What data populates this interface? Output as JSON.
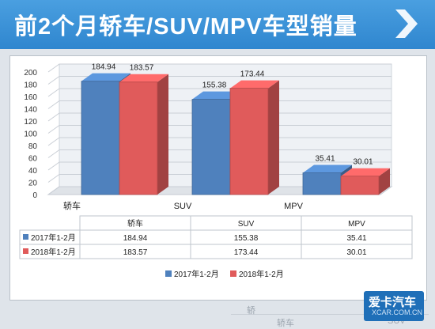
{
  "header": {
    "title": "前2个月轿车/SUV/MPV车型销量",
    "accent": "#3a93d8"
  },
  "watermark": {
    "brand_cn": "爱卡汽车",
    "brand_en": "XCAR.COM.CN"
  },
  "bottom_peek": {
    "label_a": "轿",
    "label_b": "轿车",
    "label_c": "SUV"
  },
  "chart_data": {
    "type": "bar",
    "style": "3d-clustered",
    "categories": [
      "轿车",
      "SUV",
      "MPV"
    ],
    "series": [
      {
        "name": "2017年1-2月",
        "values": [
          184.94,
          155.38,
          35.41
        ],
        "color": "#4f81bd"
      },
      {
        "name": "2018年1-2月",
        "values": [
          183.57,
          173.44,
          30.01
        ],
        "color": "#e05b5b"
      }
    ],
    "ylim": [
      0,
      200
    ],
    "yticks": [
      0,
      20,
      40,
      60,
      80,
      100,
      120,
      140,
      160,
      180,
      200
    ],
    "grid": true,
    "legend": "bottom",
    "data_table": true
  }
}
